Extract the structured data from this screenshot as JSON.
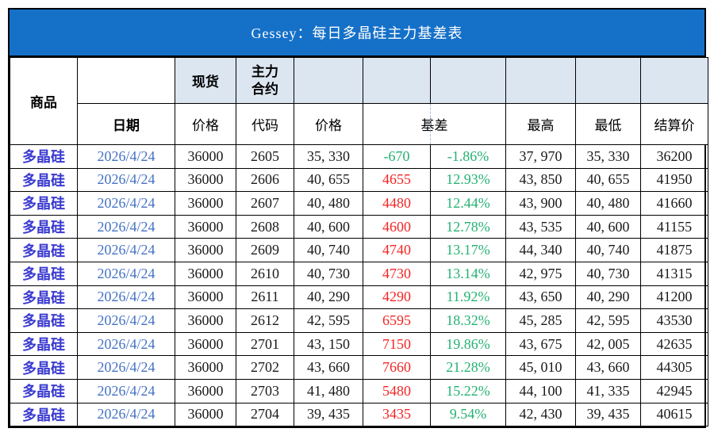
{
  "title_bar": {
    "text": "Gessey：每日多晶硅主力基差表"
  },
  "colors": {
    "title_bg": "#1570C8",
    "header_band_bg": "#DCE6F1",
    "dashed_line": "#A9BBD4",
    "commodity_text": "#3A3AD0",
    "date_text": "#4472C4",
    "number_text": "#1A1A1A",
    "basis_positive_red": "#F42525",
    "basis_negative_green": "#24B173",
    "percent_green": "#24B173"
  },
  "header": {
    "commodity": "商品",
    "date": "日期",
    "spot": "现货",
    "main_contract": "主力\n合约",
    "spot_price": "价格",
    "contract_code": "代码",
    "contract_price": "价格",
    "basis": "基差",
    "high": "最高",
    "low": "最低",
    "settlement": "结算价"
  },
  "rows": [
    {
      "commodity": "多晶硅",
      "date": "2026/4/24",
      "spot_price": "36000",
      "code": "2605",
      "price": "35, 330",
      "basis": "-670",
      "basis_pct": "-1.86%",
      "high": "37, 970",
      "low": "35, 330",
      "settlement": "36200"
    },
    {
      "commodity": "多晶硅",
      "date": "2026/4/24",
      "spot_price": "36000",
      "code": "2606",
      "price": "40, 655",
      "basis": "4655",
      "basis_pct": "12.93%",
      "high": "43, 850",
      "low": "40, 655",
      "settlement": "41950"
    },
    {
      "commodity": "多晶硅",
      "date": "2026/4/24",
      "spot_price": "36000",
      "code": "2607",
      "price": "40, 480",
      "basis": "4480",
      "basis_pct": "12.44%",
      "high": "43, 900",
      "low": "40, 480",
      "settlement": "41660"
    },
    {
      "commodity": "多晶硅",
      "date": "2026/4/24",
      "spot_price": "36000",
      "code": "2608",
      "price": "40, 600",
      "basis": "4600",
      "basis_pct": "12.78%",
      "high": "43, 535",
      "low": "40, 600",
      "settlement": "41155"
    },
    {
      "commodity": "多晶硅",
      "date": "2026/4/24",
      "spot_price": "36000",
      "code": "2609",
      "price": "40, 740",
      "basis": "4740",
      "basis_pct": "13.17%",
      "high": "44, 340",
      "low": "40, 740",
      "settlement": "41875"
    },
    {
      "commodity": "多晶硅",
      "date": "2026/4/24",
      "spot_price": "36000",
      "code": "2610",
      "price": "40, 730",
      "basis": "4730",
      "basis_pct": "13.14%",
      "high": "42, 975",
      "low": "40, 730",
      "settlement": "41315"
    },
    {
      "commodity": "多晶硅",
      "date": "2026/4/24",
      "spot_price": "36000",
      "code": "2611",
      "price": "40, 290",
      "basis": "4290",
      "basis_pct": "11.92%",
      "high": "43, 650",
      "low": "40, 290",
      "settlement": "41200"
    },
    {
      "commodity": "多晶硅",
      "date": "2026/4/24",
      "spot_price": "36000",
      "code": "2612",
      "price": "42, 595",
      "basis": "6595",
      "basis_pct": "18.32%",
      "high": "45, 285",
      "low": "42, 595",
      "settlement": "43530"
    },
    {
      "commodity": "多晶硅",
      "date": "2026/4/24",
      "spot_price": "36000",
      "code": "2701",
      "price": "43, 150",
      "basis": "7150",
      "basis_pct": "19.86%",
      "high": "43, 675",
      "low": "42, 005",
      "settlement": "42635"
    },
    {
      "commodity": "多晶硅",
      "date": "2026/4/24",
      "spot_price": "36000",
      "code": "2702",
      "price": "43, 660",
      "basis": "7660",
      "basis_pct": "21.28%",
      "high": "45, 010",
      "low": "43, 660",
      "settlement": "44305"
    },
    {
      "commodity": "多晶硅",
      "date": "2026/4/24",
      "spot_price": "36000",
      "code": "2703",
      "price": "41, 480",
      "basis": "5480",
      "basis_pct": "15.22%",
      "high": "44, 100",
      "low": "41, 335",
      "settlement": "42945"
    },
    {
      "commodity": "多晶硅",
      "date": "2026/4/24",
      "spot_price": "36000",
      "code": "2704",
      "price": "39, 435",
      "basis": "3435",
      "basis_pct": "9.54%",
      "high": "42, 430",
      "low": "39, 435",
      "settlement": "40615"
    }
  ]
}
